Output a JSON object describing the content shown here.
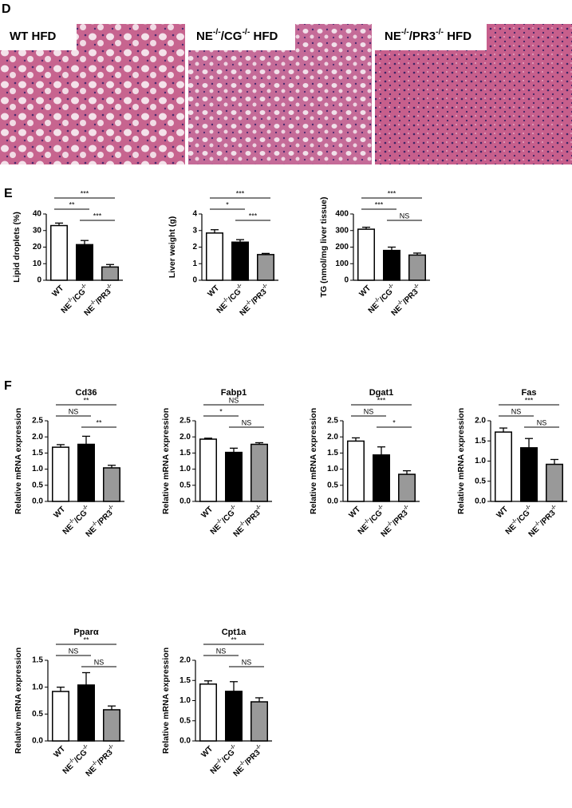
{
  "panel_labels": [
    "D",
    "E",
    "F"
  ],
  "histology": [
    {
      "label": "WT HFD"
    },
    {
      "label": "NE-/-/CG-/- HFD"
    },
    {
      "label": "NE-/-/PR3-/- HFD"
    }
  ],
  "chart_data": [
    {
      "type": "bar",
      "ylabel": "Lipid droplets (%)",
      "categories": [
        "WT",
        "NE-/-/CG-/-",
        "NE-/-/PR3-/-"
      ],
      "values": [
        33,
        21.5,
        8
      ],
      "errors": [
        1.5,
        2.5,
        1.5
      ],
      "colors": [
        "#ffffff",
        "#000000",
        "#999999"
      ],
      "ylim": [
        0,
        40
      ],
      "yticks": [
        0,
        10,
        20,
        30,
        40
      ],
      "annotations": [
        {
          "label": "***",
          "groups": [
            0,
            2
          ]
        },
        {
          "label": "**",
          "groups": [
            0,
            1
          ]
        },
        {
          "label": "***",
          "groups": [
            1,
            2
          ]
        }
      ]
    },
    {
      "type": "bar",
      "ylabel": "Liver weight (g)",
      "categories": [
        "WT",
        "NE-/-/CG-/-",
        "NE-/-/PR3-/-"
      ],
      "values": [
        2.85,
        2.3,
        1.55
      ],
      "errors": [
        0.2,
        0.15,
        0.07
      ],
      "colors": [
        "#ffffff",
        "#000000",
        "#999999"
      ],
      "ylim": [
        0,
        4
      ],
      "yticks": [
        0,
        1,
        2,
        3,
        4
      ],
      "annotations": [
        {
          "label": "***",
          "groups": [
            0,
            2
          ]
        },
        {
          "label": "*",
          "groups": [
            0,
            1
          ]
        },
        {
          "label": "***",
          "groups": [
            1,
            2
          ]
        }
      ]
    },
    {
      "type": "bar",
      "ylabel": "TG (nmol/mg liver tissue)",
      "categories": [
        "WT",
        "NE-/-/CG-/-",
        "NE-/-/PR3-/-"
      ],
      "values": [
        308,
        180,
        152
      ],
      "errors": [
        12,
        20,
        12
      ],
      "colors": [
        "#ffffff",
        "#000000",
        "#999999"
      ],
      "ylim": [
        0,
        400
      ],
      "yticks": [
        0,
        100,
        200,
        300,
        400
      ],
      "annotations": [
        {
          "label": "***",
          "groups": [
            0,
            2
          ]
        },
        {
          "label": "***",
          "groups": [
            0,
            1
          ]
        },
        {
          "label": "NS",
          "groups": [
            1,
            2
          ]
        }
      ]
    },
    {
      "type": "bar",
      "title": "Cd36",
      "ylabel": "Relative mRNA expression",
      "categories": [
        "WT",
        "NE-/-/CG-/-",
        "NE-/-/PR3-/-"
      ],
      "values": [
        1.68,
        1.77,
        1.04
      ],
      "errors": [
        0.08,
        0.25,
        0.08
      ],
      "colors": [
        "#ffffff",
        "#000000",
        "#999999"
      ],
      "ylim": [
        0,
        2.5
      ],
      "yticks": [
        {
          "value": 0,
          "label": "0.0"
        },
        {
          "value": 0.5,
          "label": "0.5"
        },
        {
          "value": 1,
          "label": "1.0"
        },
        {
          "value": 1.5,
          "label": "1.5"
        },
        {
          "value": 2,
          "label": "2.0"
        },
        {
          "value": 2.5,
          "label": "2.5"
        }
      ],
      "annotations": [
        {
          "label": "**",
          "groups": [
            0,
            2
          ]
        },
        {
          "label": "NS",
          "groups": [
            0,
            1
          ]
        },
        {
          "label": "**",
          "groups": [
            1,
            2
          ]
        }
      ]
    },
    {
      "type": "bar",
      "title": "Fabp1",
      "ylabel": "Relative mRNA expression",
      "categories": [
        "WT",
        "NE-/-/CG-/-",
        "NE-/-/PR3-/-"
      ],
      "values": [
        1.93,
        1.52,
        1.77
      ],
      "errors": [
        0.03,
        0.13,
        0.05
      ],
      "colors": [
        "#ffffff",
        "#000000",
        "#999999"
      ],
      "ylim": [
        0,
        2.5
      ],
      "yticks": [
        {
          "value": 0,
          "label": "0.0"
        },
        {
          "value": 0.5,
          "label": "0.5"
        },
        {
          "value": 1,
          "label": "1.0"
        },
        {
          "value": 1.5,
          "label": "1.5"
        },
        {
          "value": 2,
          "label": "2.0"
        },
        {
          "value": 2.5,
          "label": "2.5"
        }
      ],
      "annotations": [
        {
          "label": "NS",
          "groups": [
            0,
            2
          ]
        },
        {
          "label": "*",
          "groups": [
            0,
            1
          ]
        },
        {
          "label": "NS",
          "groups": [
            1,
            2
          ]
        }
      ]
    },
    {
      "type": "bar",
      "title": "Dgat1",
      "ylabel": "Relative mRNA expression",
      "categories": [
        "WT",
        "NE-/-/CG-/-",
        "NE-/-/PR3-/-"
      ],
      "values": [
        1.87,
        1.44,
        0.84
      ],
      "errors": [
        0.1,
        0.25,
        0.11
      ],
      "colors": [
        "#ffffff",
        "#000000",
        "#999999"
      ],
      "ylim": [
        0,
        2.5
      ],
      "yticks": [
        {
          "value": 0,
          "label": "0.0"
        },
        {
          "value": 0.5,
          "label": "0.5"
        },
        {
          "value": 1,
          "label": "1.0"
        },
        {
          "value": 1.5,
          "label": "1.5"
        },
        {
          "value": 2,
          "label": "2.0"
        },
        {
          "value": 2.5,
          "label": "2.5"
        }
      ],
      "annotations": [
        {
          "label": "***",
          "groups": [
            0,
            2
          ]
        },
        {
          "label": "NS",
          "groups": [
            0,
            1
          ]
        },
        {
          "label": "*",
          "groups": [
            1,
            2
          ]
        }
      ]
    },
    {
      "type": "bar",
      "title": "Fas",
      "ylabel": "Relative mRNA expression",
      "categories": [
        "WT",
        "NE-/-/CG-/-",
        "NE-/-/PR3-/-"
      ],
      "values": [
        1.72,
        1.33,
        0.92
      ],
      "errors": [
        0.1,
        0.23,
        0.12
      ],
      "colors": [
        "#ffffff",
        "#000000",
        "#999999"
      ],
      "ylim": [
        0,
        2
      ],
      "yticks": [
        {
          "value": 0,
          "label": "0.0"
        },
        {
          "value": 0.5,
          "label": "0.5"
        },
        {
          "value": 1,
          "label": "1.0"
        },
        {
          "value": 1.5,
          "label": "1.5"
        },
        {
          "value": 2,
          "label": "2.0"
        }
      ],
      "annotations": [
        {
          "label": "***",
          "groups": [
            0,
            2
          ]
        },
        {
          "label": "NS",
          "groups": [
            0,
            1
          ]
        },
        {
          "label": "NS",
          "groups": [
            1,
            2
          ]
        }
      ]
    },
    {
      "type": "bar",
      "title": "Pparα",
      "ylabel": "Relative mRNA expression",
      "categories": [
        "WT",
        "NE-/-/CG-/-",
        "NE-/-/PR3-/-"
      ],
      "values": [
        0.92,
        1.04,
        0.58
      ],
      "errors": [
        0.08,
        0.23,
        0.07
      ],
      "colors": [
        "#ffffff",
        "#000000",
        "#999999"
      ],
      "ylim": [
        0,
        1.5
      ],
      "yticks": [
        {
          "value": 0,
          "label": "0.0"
        },
        {
          "value": 0.5,
          "label": "0.5"
        },
        {
          "value": 1,
          "label": "1.0"
        },
        {
          "value": 1.5,
          "label": "1.5"
        }
      ],
      "annotations": [
        {
          "label": "**",
          "groups": [
            0,
            2
          ]
        },
        {
          "label": "NS",
          "groups": [
            0,
            1
          ]
        },
        {
          "label": "NS",
          "groups": [
            1,
            2
          ]
        }
      ]
    },
    {
      "type": "bar",
      "title": "Cpt1a",
      "ylabel": "Relative mRNA expression",
      "categories": [
        "WT",
        "NE-/-/CG-/-",
        "NE-/-/PR3-/-"
      ],
      "values": [
        1.41,
        1.23,
        0.97
      ],
      "errors": [
        0.08,
        0.24,
        0.1
      ],
      "colors": [
        "#ffffff",
        "#000000",
        "#999999"
      ],
      "ylim": [
        0,
        2
      ],
      "yticks": [
        {
          "value": 0,
          "label": "0.0"
        },
        {
          "value": 0.5,
          "label": "0.5"
        },
        {
          "value": 1,
          "label": "1.0"
        },
        {
          "value": 1.5,
          "label": "1.5"
        },
        {
          "value": 2,
          "label": "2.0"
        }
      ],
      "annotations": [
        {
          "label": "**",
          "groups": [
            0,
            2
          ]
        },
        {
          "label": "NS",
          "groups": [
            0,
            1
          ]
        },
        {
          "label": "NS",
          "groups": [
            1,
            2
          ]
        }
      ]
    }
  ]
}
